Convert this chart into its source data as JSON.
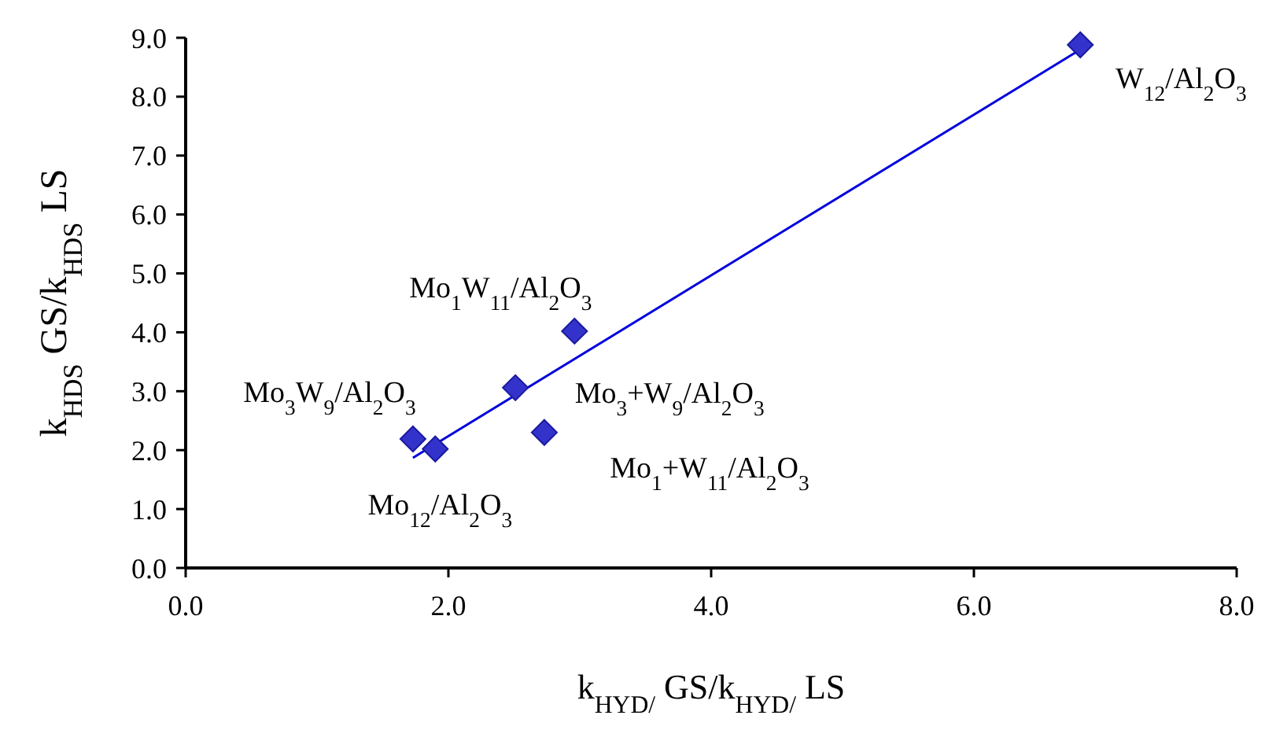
{
  "chart_data": {
    "type": "scatter",
    "xlabel": "k$_{HYD/}$ GS/k$_{HYD/}$ LS",
    "ylabel": "k$_{HDS}$ GS/k$_{HDS}$ LS",
    "grid": false,
    "xlim": [
      0,
      8
    ],
    "xticks": [
      {
        "value": 0,
        "label": "0.0"
      },
      {
        "value": 2,
        "label": "2.0"
      },
      {
        "value": 4,
        "label": "4.0"
      },
      {
        "value": 6,
        "label": "6.0"
      },
      {
        "value": 8,
        "label": "8.0"
      }
    ],
    "ylim": [
      0,
      9
    ],
    "yticks": [
      {
        "value": 0,
        "label": "0.0"
      },
      {
        "value": 1,
        "label": "1.0"
      },
      {
        "value": 2,
        "label": "2.0"
      },
      {
        "value": 3,
        "label": "3.0"
      },
      {
        "value": 4,
        "label": "4.0"
      },
      {
        "value": 5,
        "label": "5.0"
      },
      {
        "value": 6,
        "label": "6.0"
      },
      {
        "value": 7,
        "label": "7.0"
      },
      {
        "value": 8,
        "label": "8.0"
      },
      {
        "value": 9,
        "label": "9.0"
      }
    ],
    "series": [
      {
        "marker": "diamond",
        "color": "#3333cc",
        "x": [
          1.73,
          1.9,
          2.51,
          2.73,
          2.96,
          6.81
        ],
        "values": [
          2.19,
          2.02,
          3.06,
          2.3,
          4.02,
          8.88
        ]
      },
      {
        "type": "line",
        "color": "#0000dd",
        "x": [
          1.73,
          6.81
        ],
        "values": [
          1.87,
          8.8
        ]
      }
    ],
    "annotations": [
      {
        "text": "Mo$_{3}$W$_{9}$/Al$_{2}$O$_{3}$",
        "x": 1.73,
        "y": 2.19
      },
      {
        "text": "Mo$_{12}$/Al$_{2}$O$_{3}$",
        "x": 1.9,
        "y": 2.02
      },
      {
        "text": "Mo$_{3}$+W$_{9}$/Al$_{2}$O$_{3}$",
        "x": 2.51,
        "y": 3.06
      },
      {
        "text": "Mo$_{1}$+W$_{11}$/Al$_{2}$O$_{3}$",
        "x": 2.73,
        "y": 2.3
      },
      {
        "text": "Mo$_{1}$W$_{11}$/Al$_{2}$O$_{3}$",
        "x": 2.96,
        "y": 4.02
      },
      {
        "text": "W$_{12}$/Al$_{2}$O$_{3}$",
        "x": 6.81,
        "y": 8.88
      }
    ]
  }
}
